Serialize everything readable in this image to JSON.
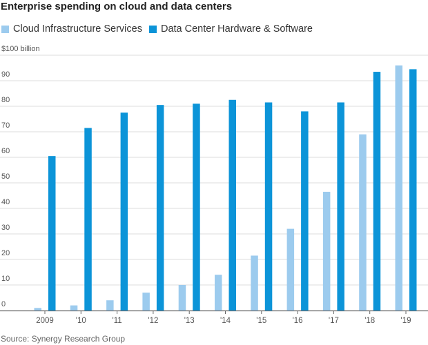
{
  "title": "Enterprise spending on cloud and data centers",
  "source": "Source: Synergy Research Group",
  "colors": {
    "cloud": "#9ccbee",
    "datacenter": "#0c94d8",
    "grid": "#dcdcdc",
    "axis": "#666666"
  },
  "legend": [
    {
      "label": "Cloud Infrastructure Services",
      "color": "#9ccbee"
    },
    {
      "label": "Data Center Hardware & Software",
      "color": "#0c94d8"
    }
  ],
  "chart_data": {
    "type": "bar",
    "title": "Enterprise spending on cloud and data centers",
    "ylim": [
      0,
      100
    ],
    "y_ticks": [
      {
        "value": 100,
        "label": "$100 billion"
      },
      {
        "value": 90,
        "label": "90"
      },
      {
        "value": 80,
        "label": "80"
      },
      {
        "value": 70,
        "label": "70"
      },
      {
        "value": 60,
        "label": "60"
      },
      {
        "value": 50,
        "label": "50"
      },
      {
        "value": 40,
        "label": "40"
      },
      {
        "value": 30,
        "label": "30"
      },
      {
        "value": 20,
        "label": "20"
      },
      {
        "value": 10,
        "label": "10"
      },
      {
        "value": 0,
        "label": "0"
      }
    ],
    "categories": [
      "2009",
      "'10",
      "'11",
      "'12",
      "'13",
      "'14",
      "'15",
      "'16",
      "'17",
      "'18",
      "'19"
    ],
    "series": [
      {
        "name": "Cloud Infrastructure Services",
        "values": [
          1,
          2,
          4,
          7,
          10,
          14,
          21.5,
          32,
          46.5,
          69,
          96
        ]
      },
      {
        "name": "Data Center Hardware & Software",
        "values": [
          60.5,
          71.5,
          77.5,
          80.5,
          81,
          82.5,
          81.5,
          78,
          81.5,
          93.5,
          94.5
        ]
      }
    ],
    "grid": true,
    "legend_position": "top-left"
  }
}
